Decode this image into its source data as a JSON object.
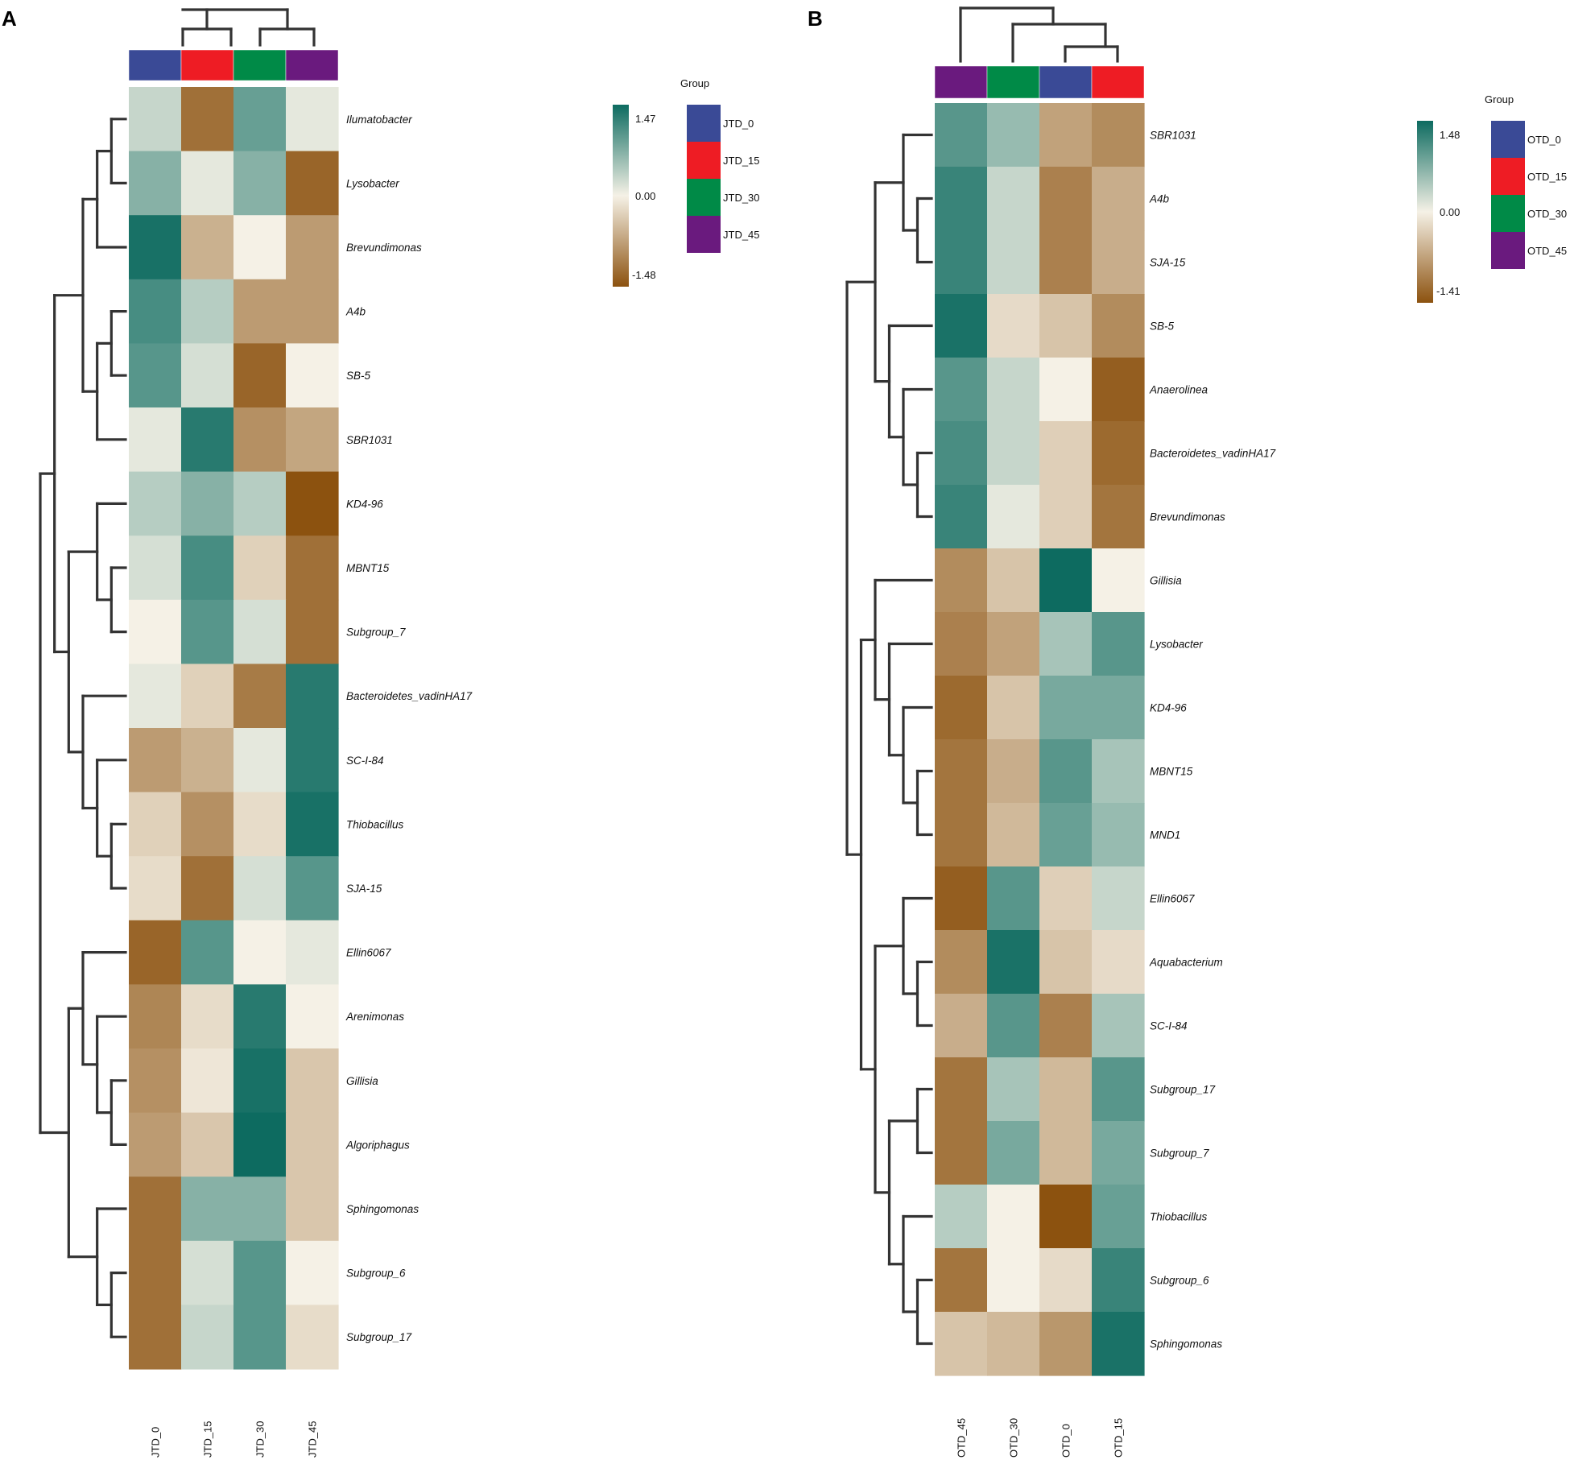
{
  "colors": {
    "low": "#8c520f",
    "mid": "#f5f1e6",
    "high": "#0d6b60",
    "groups": {
      "JTD_0": "#3a4a96",
      "JTD_15": "#ee1c24",
      "JTD_30": "#008a47",
      "JTD_45": "#6a1a7e",
      "OTD_0": "#3a4a96",
      "OTD_15": "#ee1c24",
      "OTD_30": "#008a47",
      "OTD_45": "#6a1a7e"
    }
  },
  "chart_data": [
    {
      "type": "heatmap",
      "panel_label": "A",
      "columns": [
        "JTD_0",
        "JTD_15",
        "JTD_30",
        "JTD_45"
      ],
      "rows": [
        "Ilumatobacter",
        "Lysobacter",
        "Brevundimonas",
        "A4b",
        "SB-5",
        "SBR1031",
        "KD4-96",
        "MBNT15",
        "Subgroup_7",
        "Bacteroidetes_vadinHA17",
        "SC-I-84",
        "Thiobacillus",
        "SJA-15",
        "Ellin6067",
        "Arenimonas",
        "Gillisia",
        "Algoriphagus",
        "Sphingomonas",
        "Subgroup_6",
        "Subgroup_17"
      ],
      "values": [
        [
          0.3,
          -1.2,
          0.9,
          0.1
        ],
        [
          0.7,
          0.1,
          0.7,
          -1.3
        ],
        [
          1.4,
          -0.6,
          0.0,
          -0.8
        ],
        [
          1.1,
          0.4,
          -0.8,
          -0.8
        ],
        [
          1.0,
          0.2,
          -1.3,
          0.0
        ],
        [
          0.1,
          1.3,
          -0.9,
          -0.7
        ],
        [
          0.4,
          0.7,
          0.4,
          -1.48
        ],
        [
          0.2,
          1.1,
          -0.3,
          -1.2
        ],
        [
          0.0,
          1.0,
          0.2,
          -1.2
        ],
        [
          0.1,
          -0.3,
          -1.1,
          1.3
        ],
        [
          -0.8,
          -0.6,
          0.1,
          1.3
        ],
        [
          -0.3,
          -0.9,
          -0.2,
          1.4
        ],
        [
          -0.2,
          -1.2,
          0.2,
          1.0
        ],
        [
          -1.3,
          1.0,
          0.0,
          0.1
        ],
        [
          -1.0,
          -0.2,
          1.3,
          0.0
        ],
        [
          -0.9,
          -0.1,
          1.4,
          -0.4
        ],
        [
          -0.8,
          -0.4,
          1.47,
          -0.4
        ],
        [
          -1.2,
          0.7,
          0.7,
          -0.4
        ],
        [
          -1.2,
          0.2,
          1.0,
          0.0
        ],
        [
          -1.2,
          0.3,
          1.0,
          -0.2
        ]
      ],
      "color_scale": {
        "min": -1.48,
        "mid": 0.0,
        "max": 1.47,
        "tick_labels": [
          "1.47",
          "0.00",
          "-1.48"
        ]
      },
      "legend": {
        "title": "Group",
        "entries": [
          "JTD_0",
          "JTD_15",
          "JTD_30",
          "JTD_45"
        ]
      }
    },
    {
      "type": "heatmap",
      "panel_label": "B",
      "columns": [
        "OTD_45",
        "OTD_30",
        "OTD_0",
        "OTD_15"
      ],
      "rows": [
        "SBR1031",
        "A4b",
        "SJA-15",
        "SB-5",
        "Anaerolinea",
        "Bacteroidetes_vadinHA17",
        "Brevundimonas",
        "Gillisia",
        "Lysobacter",
        "KD4-96",
        "MBNT15",
        "MND1",
        "Ellin6067",
        "Aquabacterium",
        "SC-I-84",
        "Subgroup_17",
        "Subgroup_7",
        "Thiobacillus",
        "Subgroup_6",
        "Sphingomonas"
      ],
      "values": [
        [
          1.0,
          0.6,
          -0.7,
          -0.9
        ],
        [
          1.2,
          0.3,
          -1.0,
          -0.6
        ],
        [
          1.2,
          0.3,
          -1.0,
          -0.6
        ],
        [
          1.4,
          -0.2,
          -0.4,
          -0.9
        ],
        [
          1.0,
          0.3,
          0.0,
          -1.3
        ],
        [
          1.1,
          0.3,
          -0.3,
          -1.2
        ],
        [
          1.2,
          0.1,
          -0.3,
          -1.1
        ],
        [
          -0.9,
          -0.4,
          1.48,
          0.0
        ],
        [
          -1.0,
          -0.7,
          0.5,
          1.0
        ],
        [
          -1.2,
          -0.4,
          0.8,
          0.8
        ],
        [
          -1.1,
          -0.6,
          1.0,
          0.5
        ],
        [
          -1.1,
          -0.5,
          0.9,
          0.6
        ],
        [
          -1.3,
          1.0,
          -0.3,
          0.3
        ],
        [
          -0.9,
          1.4,
          -0.4,
          -0.2
        ],
        [
          -0.6,
          1.0,
          -1.0,
          0.5
        ],
        [
          -1.1,
          0.5,
          -0.5,
          1.0
        ],
        [
          -1.1,
          0.8,
          -0.5,
          0.8
        ],
        [
          0.4,
          0.0,
          -1.41,
          0.9
        ],
        [
          -1.1,
          0.0,
          -0.2,
          1.2
        ],
        [
          -0.4,
          -0.5,
          -0.8,
          1.4
        ]
      ],
      "color_scale": {
        "min": -1.41,
        "mid": 0.0,
        "max": 1.48,
        "tick_labels": [
          "1.48",
          "0.00",
          "-1.41"
        ]
      },
      "legend": {
        "title": "Group",
        "entries": [
          "OTD_0",
          "OTD_15",
          "OTD_30",
          "OTD_45"
        ]
      }
    }
  ]
}
